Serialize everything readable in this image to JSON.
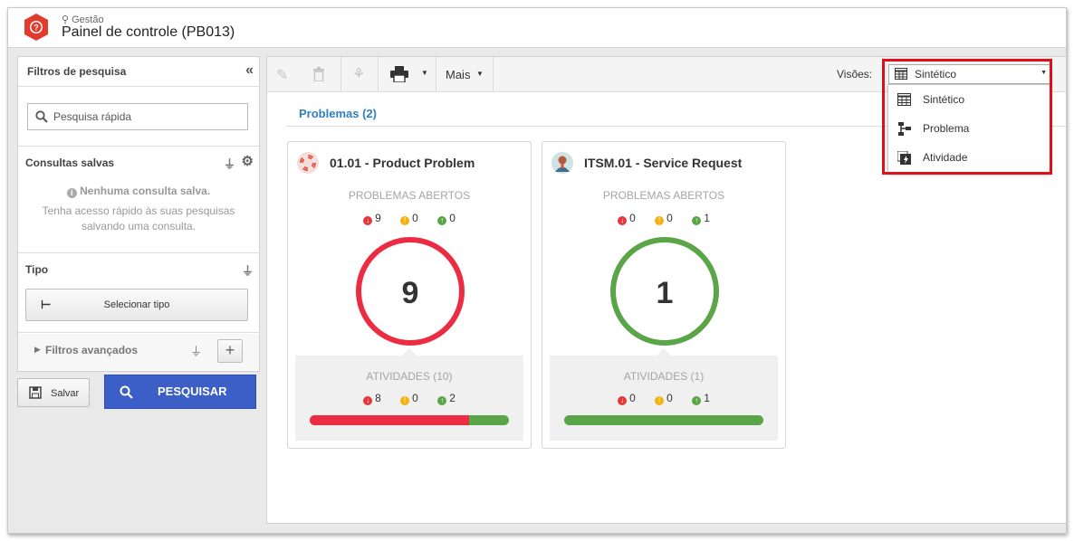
{
  "header": {
    "breadcrumb": "Gestão",
    "title": "Painel de controle (PB013)"
  },
  "filters": {
    "title": "Filtros de pesquisa",
    "search_placeholder": "Pesquisa rápida",
    "saved": {
      "title": "Consultas salvas",
      "empty_title": "Nenhuma consulta salva.",
      "empty_desc": "Tenha acesso rápido às suas pesquisas salvando uma consulta."
    },
    "type": {
      "title": "Tipo",
      "select_label": "Selecionar tipo"
    },
    "advanced": "Filtros avançados",
    "save_label": "Salvar",
    "search_label": "PESQUISAR"
  },
  "toolbar": {
    "more_label": "Mais"
  },
  "views": {
    "label": "Visões:",
    "selected": "Sintético",
    "options": [
      "Sintético",
      "Problema",
      "Atividade"
    ]
  },
  "tab": {
    "label": "Problemas (2)"
  },
  "cards": [
    {
      "title": "01.01 - Product Problem",
      "open_label": "PROBLEMAS ABERTOS",
      "open_counts": {
        "late": "9",
        "warning": "0",
        "ontime": "0"
      },
      "total": "9",
      "ring_color": "#ec2c43",
      "activities_label": "ATIVIDADES (10)",
      "activity_counts": {
        "late": "8",
        "warning": "0",
        "ontime": "2"
      },
      "late_fraction": 0.8
    },
    {
      "title": "ITSM.01 - Service Request",
      "open_label": "PROBLEMAS ABERTOS",
      "open_counts": {
        "late": "0",
        "warning": "0",
        "ontime": "1"
      },
      "total": "1",
      "ring_color": "#5aa547",
      "activities_label": "ATIVIDADES (1)",
      "activity_counts": {
        "late": "0",
        "warning": "0",
        "ontime": "1"
      },
      "late_fraction": 0
    }
  ]
}
